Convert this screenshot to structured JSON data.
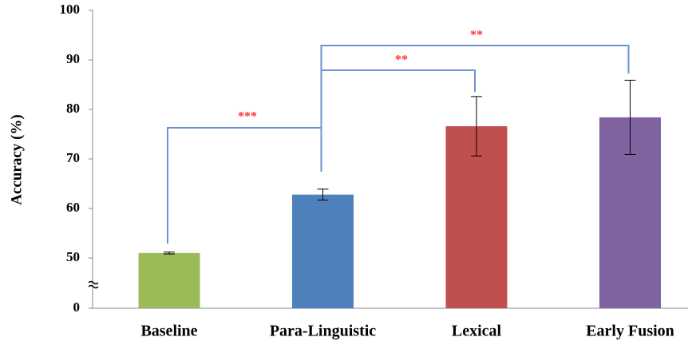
{
  "chart_data": {
    "type": "bar",
    "y_label": "Accuracy (%)",
    "categories": [
      "Baseline",
      "Para-Linguistic",
      "Lexical",
      "Early Fusion"
    ],
    "values": [
      51,
      62.8,
      76.6,
      78.4
    ],
    "errors": [
      0.2,
      1.1,
      6,
      7.5
    ],
    "colors": [
      "#9bbb59",
      "#4f81bd",
      "#c0504d",
      "#8064a2"
    ],
    "ylim": [
      0,
      100
    ],
    "yticks": [
      0,
      50,
      60,
      70,
      80,
      90,
      100
    ],
    "axis_break": [
      0,
      50
    ],
    "grid": false,
    "significance": [
      {
        "from": 0,
        "to": 1,
        "label": "***"
      },
      {
        "from": 1,
        "to": 2,
        "label": "**"
      },
      {
        "from": 1,
        "to": 3,
        "label": "**"
      }
    ]
  }
}
